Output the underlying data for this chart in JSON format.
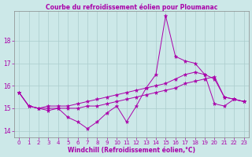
{
  "title": "Courbe du refroidissement éolien pour Ploumanac",
  "xlabel": "Windchill (Refroidissement éolien,°C)",
  "bg_color": "#cce8e8",
  "grid_color": "#aacccc",
  "line_color": "#aa00aa",
  "spine_color": "#888888",
  "xlim": [
    -0.5,
    23.5
  ],
  "ylim": [
    13.7,
    19.3
  ],
  "yticks": [
    14,
    15,
    16,
    17,
    18
  ],
  "xticks": [
    0,
    1,
    2,
    3,
    4,
    5,
    6,
    7,
    8,
    9,
    10,
    11,
    12,
    13,
    14,
    15,
    16,
    17,
    18,
    19,
    20,
    21,
    22,
    23
  ],
  "tick_fontsize": 5,
  "xlabel_fontsize": 5.5,
  "title_fontsize": 5.5,
  "series": [
    [
      15.7,
      15.1,
      15.0,
      14.9,
      15.0,
      14.6,
      14.4,
      14.1,
      14.4,
      14.8,
      15.1,
      14.4,
      15.1,
      15.9,
      16.5,
      19.1,
      17.3,
      17.1,
      17.0,
      16.5,
      15.2,
      15.1,
      15.4,
      15.3
    ],
    [
      15.7,
      15.1,
      15.0,
      15.1,
      15.1,
      15.1,
      15.2,
      15.3,
      15.4,
      15.5,
      15.6,
      15.7,
      15.8,
      15.9,
      16.0,
      16.1,
      16.3,
      16.5,
      16.6,
      16.5,
      16.3,
      15.5,
      15.4,
      15.3
    ],
    [
      15.7,
      15.1,
      15.0,
      15.0,
      15.0,
      15.0,
      15.0,
      15.1,
      15.1,
      15.2,
      15.3,
      15.4,
      15.5,
      15.6,
      15.7,
      15.8,
      15.9,
      16.1,
      16.2,
      16.3,
      16.4,
      15.5,
      15.4,
      15.3
    ]
  ]
}
